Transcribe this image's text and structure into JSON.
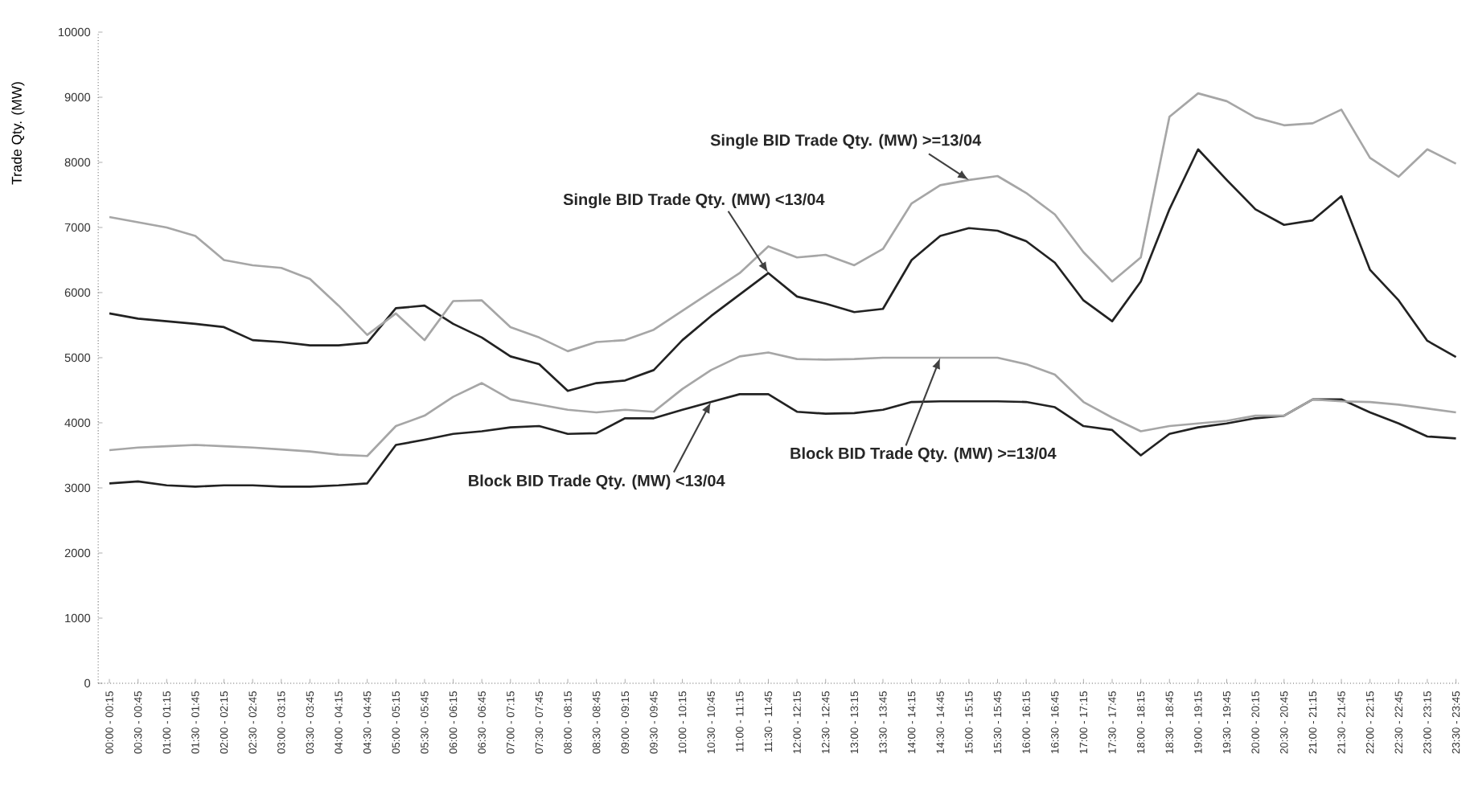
{
  "chart_data": {
    "type": "line",
    "ylabel": "Trade Qty. (MW)",
    "categories": [
      "00:00 - 00:15",
      "00:30 - 00:45",
      "01:00 - 01:15",
      "01:30 - 01:45",
      "02:00 - 02:15",
      "02:30 - 02:45",
      "03:00 - 03:15",
      "03:30 - 03:45",
      "04:00 - 04:15",
      "04:30 - 04:45",
      "05:00 - 05:15",
      "05:30 - 05:45",
      "06:00 - 06:15",
      "06:30 - 06:45",
      "07:00 - 07:15",
      "07:30 - 07:45",
      "08:00 - 08:15",
      "08:30 - 08:45",
      "09:00 - 09:15",
      "09:30 - 09:45",
      "10:00 - 10:15",
      "10:30 - 10:45",
      "11:00 - 11:15",
      "11:30 - 11:45",
      "12:00 - 12:15",
      "12:30 - 12:45",
      "13:00 - 13:15",
      "13:30 - 13:45",
      "14:00 - 14:15",
      "14:30 - 14:45",
      "15:00 - 15:15",
      "15:30 - 15:45",
      "16:00 - 16:15",
      "16:30 - 16:45",
      "17:00 - 17:15",
      "17:30 - 17:45",
      "18:00 - 18:15",
      "18:30 - 18:45",
      "19:00 - 19:15",
      "19:30 - 19:45",
      "20:00 - 20:15",
      "20:30 - 20:45",
      "21:00 - 21:15",
      "21:30 - 21:45",
      "22:00 - 22:15",
      "22:30 - 22:45",
      "23:00 - 23:15",
      "23:30 - 23:45"
    ],
    "series": [
      {
        "color": "#222222",
        "values": [
          5680,
          5600,
          5560,
          5520,
          5470,
          5270,
          5240,
          5190,
          5190,
          5230,
          5760,
          5800,
          5520,
          5310,
          5020,
          4900,
          4490,
          4610,
          4650,
          4810,
          5270,
          5640,
          5970,
          6300,
          5940,
          5830,
          5700,
          5750,
          6500,
          6870,
          6990,
          6950,
          6790,
          6460,
          5880,
          5560,
          6170,
          7280,
          8200,
          7730,
          7280,
          7040,
          7110,
          7480,
          6350,
          5880,
          5260,
          5010
        ]
      },
      {
        "color": "#a6a6a6",
        "values": [
          7160,
          7080,
          7000,
          6870,
          6500,
          6420,
          6380,
          6210,
          5800,
          5350,
          5680,
          5270,
          5870,
          5880,
          5470,
          5310,
          5100,
          5240,
          5270,
          5430,
          5720,
          6010,
          6300,
          6710,
          6540,
          6580,
          6420,
          6670,
          7370,
          7650,
          7730,
          7790,
          7530,
          7200,
          6620,
          6170,
          6540,
          8700,
          9060,
          8940,
          8690,
          8570,
          8600,
          8810,
          8070,
          7780,
          8200,
          7980
        ]
      },
      {
        "color": "#222222",
        "values": [
          3070,
          3100,
          3040,
          3020,
          3040,
          3040,
          3020,
          3020,
          3040,
          3070,
          3660,
          3740,
          3830,
          3870,
          3930,
          3950,
          3830,
          3840,
          4070,
          4070,
          4200,
          4320,
          4440,
          4440,
          4170,
          4140,
          4150,
          4200,
          4320,
          4330,
          4330,
          4330,
          4320,
          4240,
          3950,
          3890,
          3500,
          3830,
          3930,
          3990,
          4070,
          4110,
          4360,
          4360,
          4160,
          3990,
          3790,
          3760
        ]
      },
      {
        "color": "#a6a6a6",
        "values": [
          3580,
          3620,
          3640,
          3660,
          3640,
          3620,
          3590,
          3560,
          3510,
          3490,
          3950,
          4110,
          4400,
          4610,
          4360,
          4280,
          4200,
          4160,
          4200,
          4170,
          4520,
          4810,
          5020,
          5080,
          4980,
          4970,
          4980,
          5000,
          5000,
          5000,
          5000,
          5000,
          4900,
          4740,
          4320,
          4080,
          3870,
          3950,
          3990,
          4030,
          4110,
          4110,
          4360,
          4330,
          4320,
          4280,
          4220,
          4160
        ]
      }
    ],
    "ylim": [
      0,
      10000
    ],
    "yticks": [
      0,
      1000,
      2000,
      3000,
      4000,
      5000,
      6000,
      7000,
      8000,
      9000,
      10000
    ],
    "annotations": [
      {
        "text": "Single BID Trade Qty. (MW) >=13/04",
        "x": "15:00 - 15:15",
        "y": 7730
      },
      {
        "text": "Single BID Trade Qty. (MW) <13/04",
        "x": "11:30 - 11:45",
        "y": 6300
      },
      {
        "text": "Block BID Trade Qty. (MW) <13/04",
        "x": "10:30 - 10:45",
        "y": 4320
      },
      {
        "text": "Block BID Trade Qty. (MW) >=13/04",
        "x": "14:30 - 14:45",
        "y": 5000
      }
    ]
  }
}
